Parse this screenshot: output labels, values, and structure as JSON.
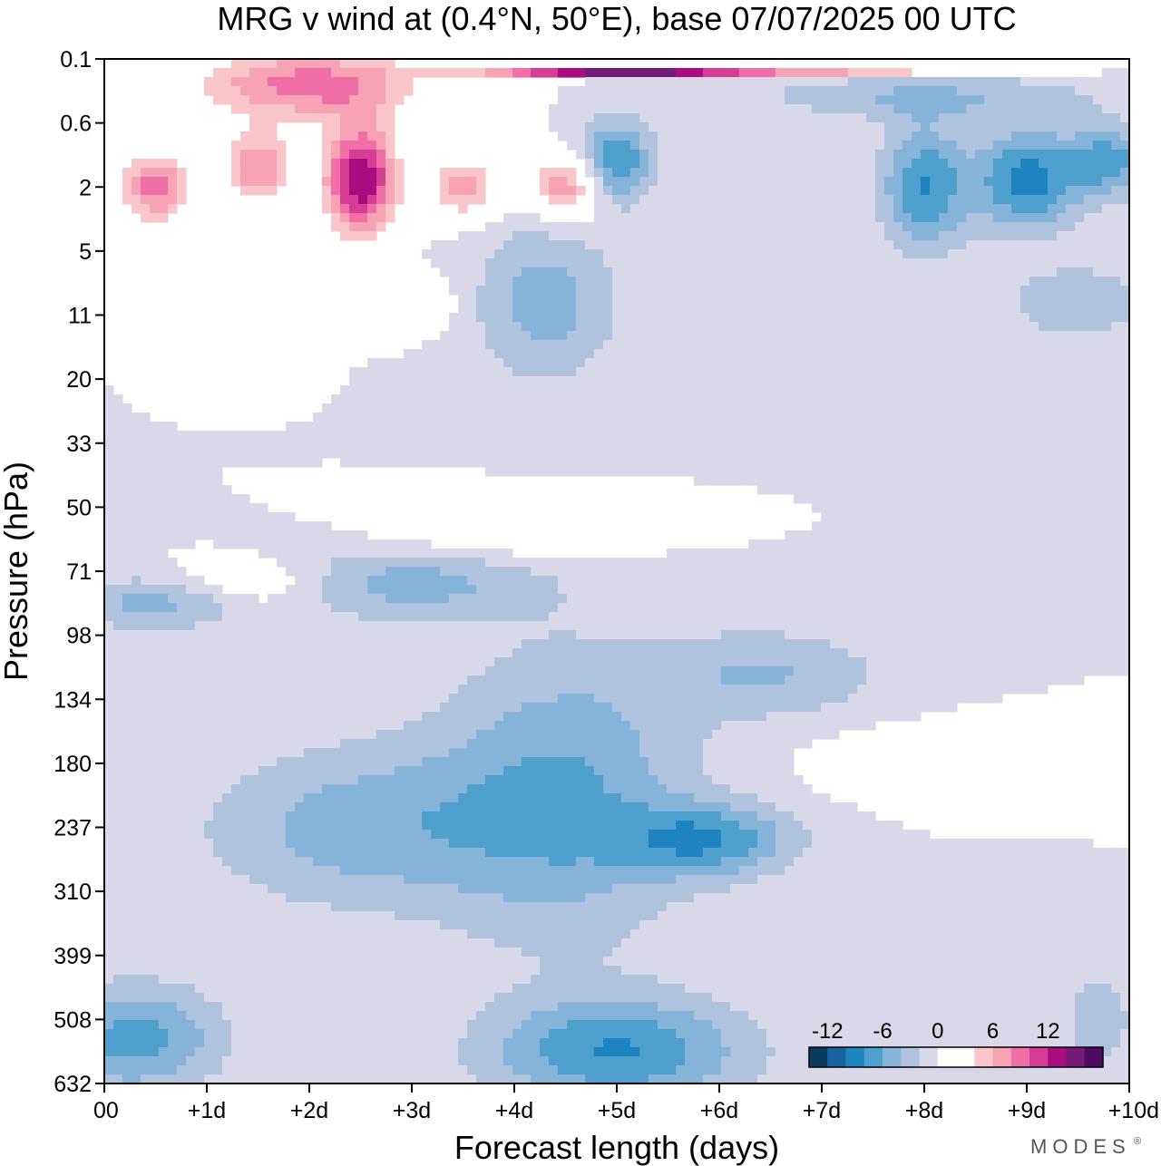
{
  "chart_data": {
    "type": "heatmap",
    "title": "MRG v wind at (0.4°N, 50°E),  base 07/07/2025  00 UTC",
    "xlabel": "Forecast length (days)",
    "ylabel": "Pressure (hPa)",
    "x_ticks": [
      "00",
      "+1d",
      "+2d",
      "+3d",
      "+4d",
      "+5d",
      "+6d",
      "+7d",
      "+8d",
      "+9d",
      "+10d"
    ],
    "y_ticks": [
      "0.1",
      "0.6",
      "2",
      "5",
      "11",
      "20",
      "33",
      "50",
      "71",
      "98",
      "134",
      "180",
      "237",
      "310",
      "399",
      "508",
      "632"
    ],
    "xlim": [
      0,
      10
    ],
    "ylim_levels": [
      "0.1",
      "632"
    ],
    "colorbar": {
      "tick_labels": [
        "-12",
        "-6",
        "0",
        "6",
        "12"
      ],
      "tick_values": [
        -12,
        -6,
        0,
        6,
        12
      ],
      "level_min": -14,
      "level_max": 14,
      "level_step": 2,
      "colors": [
        "#0b3c5d",
        "#1764a0",
        "#1f85c0",
        "#4f9fcf",
        "#86b4d8",
        "#b0c3de",
        "#d8d8e8",
        "#ffffff",
        "#ffffff",
        "#f9c7cb",
        "#f7a3b5",
        "#f06fa6",
        "#d53d96",
        "#a80e80",
        "#751a79",
        "#4f0b5f"
      ]
    },
    "features": [
      {
        "x": 5.0,
        "y": 0.2,
        "value": 15,
        "sx": 0.9,
        "sy": 0.05
      },
      {
        "x": 7.2,
        "y": 0.15,
        "value": 14,
        "sx": 1.1,
        "sy": 0.05
      },
      {
        "x": 2.5,
        "y": 1.9,
        "value": 14,
        "sx": 0.25,
        "sy": 0.6
      },
      {
        "x": 0.5,
        "y": 2.0,
        "value": 9,
        "sx": 0.25,
        "sy": 0.4
      },
      {
        "x": 1.5,
        "y": 1.7,
        "value": 8,
        "sx": 0.25,
        "sy": 0.4
      },
      {
        "x": 2.0,
        "y": 0.4,
        "value": 9,
        "sx": 0.8,
        "sy": 0.4
      },
      {
        "x": 3.5,
        "y": 2.0,
        "value": 7,
        "sx": 0.25,
        "sy": 0.35
      },
      {
        "x": 4.5,
        "y": 2.0,
        "value": 8,
        "sx": 0.25,
        "sy": 0.35
      },
      {
        "x": 5.0,
        "y": 1.6,
        "value": -8,
        "sx": 0.25,
        "sy": 0.45
      },
      {
        "x": 9.0,
        "y": 1.9,
        "value": -9,
        "sx": 0.35,
        "sy": 0.55
      },
      {
        "x": 8.0,
        "y": 2.0,
        "value": -8,
        "sx": 0.3,
        "sy": 0.7
      },
      {
        "x": 9.8,
        "y": 1.6,
        "value": -7,
        "sx": 0.3,
        "sy": 0.4
      },
      {
        "x": 4.3,
        "y": 3.8,
        "value": -5,
        "sx": 0.5,
        "sy": 0.9
      },
      {
        "x": 8.0,
        "y": 0.6,
        "value": -4,
        "sx": 1.2,
        "sy": 0.25
      },
      {
        "x": 9.5,
        "y": 3.8,
        "value": -4,
        "sx": 0.5,
        "sy": 0.4
      },
      {
        "x": 1.5,
        "y": 4.4,
        "value": 4,
        "sx": 0.25,
        "sy": 0.3
      },
      {
        "x": 3.0,
        "y": 3.8,
        "value": 3,
        "sx": 0.3,
        "sy": 0.3
      },
      {
        "x": 0.5,
        "y": 8.5,
        "value": -5,
        "sx": 0.6,
        "sy": 0.3
      },
      {
        "x": 1.5,
        "y": 8.2,
        "value": 4,
        "sx": 0.6,
        "sy": 0.3
      },
      {
        "x": 2.8,
        "y": 8.2,
        "value": -5,
        "sx": 1.0,
        "sy": 0.4
      },
      {
        "x": 4.0,
        "y": 7.3,
        "value": 4,
        "sx": 0.8,
        "sy": 0.3
      },
      {
        "x": 6.5,
        "y": 9.6,
        "value": -4,
        "sx": 0.8,
        "sy": 0.5
      },
      {
        "x": 2.5,
        "y": 12.0,
        "value": -5,
        "sx": 1.1,
        "sy": 0.9
      },
      {
        "x": 4.5,
        "y": 11.5,
        "value": -6,
        "sx": 0.9,
        "sy": 1.6
      },
      {
        "x": 5.9,
        "y": 12.2,
        "value": -7,
        "sx": 0.6,
        "sy": 0.4
      },
      {
        "x": 8.6,
        "y": 11.0,
        "value": 4,
        "sx": 0.9,
        "sy": 0.35
      },
      {
        "x": 0.3,
        "y": 15.3,
        "value": -7,
        "sx": 0.6,
        "sy": 0.6
      },
      {
        "x": 5.0,
        "y": 15.5,
        "value": -8,
        "sx": 0.9,
        "sy": 0.6
      },
      {
        "x": 9.7,
        "y": 15.0,
        "value": -3,
        "sx": 0.3,
        "sy": 0.6
      },
      {
        "x": 8.6,
        "y": 13.0,
        "value": -2,
        "sx": 0.4,
        "sy": 0.3
      }
    ]
  },
  "logo": "MODES",
  "logo_mark": "®"
}
